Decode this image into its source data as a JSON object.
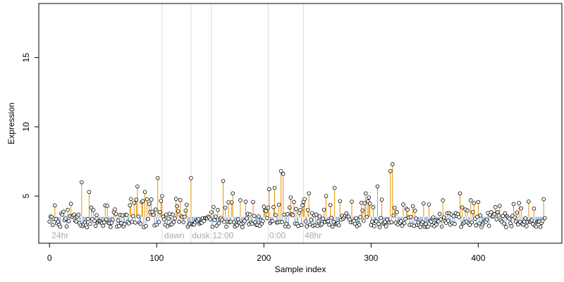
{
  "chart_data": {
    "type": "scatter",
    "title": "",
    "xlabel": "Sample index",
    "ylabel": "Expression",
    "xlim": [
      -10,
      478
    ],
    "ylim": [
      1.6,
      18.9
    ],
    "x_ticks": [
      0,
      100,
      200,
      300,
      400
    ],
    "y_ticks": [
      5,
      10,
      15
    ],
    "baseline": 3.5,
    "segment_dividers": [
      105,
      132,
      151,
      204,
      237
    ],
    "segment_labels": [
      {
        "x": 2,
        "text": "24hr"
      },
      {
        "x": 107,
        "text": "dawn"
      },
      {
        "x": 133,
        "text": "dusk"
      },
      {
        "x": 152,
        "text": "12:00"
      },
      {
        "x": 205,
        "text": "0:00"
      },
      {
        "x": 238,
        "text": "48hr"
      }
    ],
    "colors": {
      "above_baseline": "#e69500",
      "below_baseline": "#7ea6d9",
      "point_fill": "#ffffff",
      "point_stroke": "#000000",
      "divider": "#dddddd",
      "segment_text": "#aaaaaa"
    },
    "peaks": [
      {
        "x": 30,
        "y": 6.0
      },
      {
        "x": 37,
        "y": 5.3
      },
      {
        "x": 54,
        "y": 4.3
      },
      {
        "x": 82,
        "y": 5.7
      },
      {
        "x": 89,
        "y": 5.3
      },
      {
        "x": 101,
        "y": 6.3
      },
      {
        "x": 105,
        "y": 5.0
      },
      {
        "x": 118,
        "y": 4.8
      },
      {
        "x": 132,
        "y": 6.3
      },
      {
        "x": 162,
        "y": 6.1
      },
      {
        "x": 171,
        "y": 5.2
      },
      {
        "x": 178,
        "y": 4.7
      },
      {
        "x": 205,
        "y": 5.5
      },
      {
        "x": 210,
        "y": 5.6
      },
      {
        "x": 216,
        "y": 6.8
      },
      {
        "x": 218,
        "y": 6.6
      },
      {
        "x": 225,
        "y": 4.9
      },
      {
        "x": 242,
        "y": 5.2
      },
      {
        "x": 258,
        "y": 5.0
      },
      {
        "x": 266,
        "y": 5.6
      },
      {
        "x": 282,
        "y": 4.6
      },
      {
        "x": 295,
        "y": 5.2
      },
      {
        "x": 298,
        "y": 4.9
      },
      {
        "x": 306,
        "y": 5.7
      },
      {
        "x": 318,
        "y": 6.8
      },
      {
        "x": 320,
        "y": 7.3
      },
      {
        "x": 330,
        "y": 4.4
      },
      {
        "x": 367,
        "y": 4.7
      },
      {
        "x": 383,
        "y": 5.2
      },
      {
        "x": 393,
        "y": 4.7
      },
      {
        "x": 420,
        "y": 4.3
      },
      {
        "x": 438,
        "y": 4.5
      },
      {
        "x": 452,
        "y": 4.1
      }
    ]
  }
}
